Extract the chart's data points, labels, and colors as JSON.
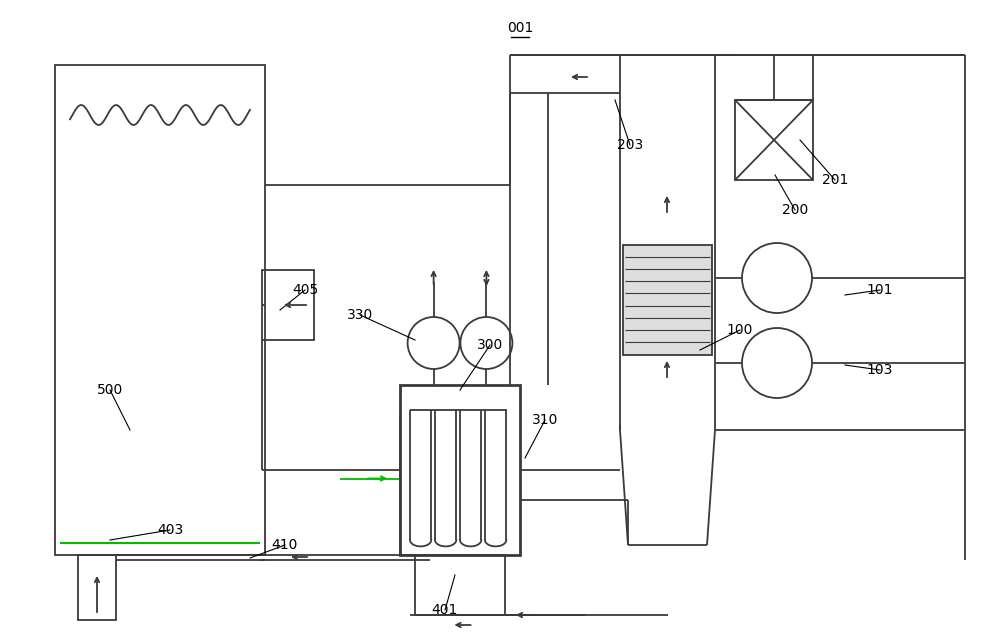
{
  "bg_color": "#ffffff",
  "line_color": "#3a3a3a",
  "green_color": "#00bb00",
  "lw": 1.3,
  "lw2": 2.0,
  "fs": 10
}
